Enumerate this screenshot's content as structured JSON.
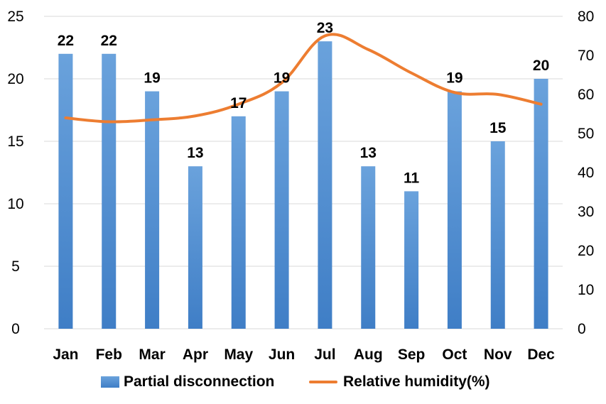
{
  "chart_data": {
    "type": "bar",
    "categories": [
      "Jan",
      "Feb",
      "Mar",
      "Apr",
      "May",
      "Jun",
      "Jul",
      "Aug",
      "Sep",
      "Oct",
      "Nov",
      "Dec"
    ],
    "series": [
      {
        "name": "Partial disconnection",
        "type": "bar",
        "axis": "left",
        "values": [
          22,
          22,
          19,
          13,
          17,
          19,
          23,
          13,
          11,
          19,
          15,
          20
        ],
        "data_labels": [
          "22",
          "22",
          "19",
          "13",
          "17",
          "19",
          "23",
          "13",
          "11",
          "19",
          "15",
          "20"
        ],
        "color": "#5b9bd5"
      },
      {
        "name": "Relative humidity(%)",
        "type": "line",
        "axis": "right",
        "values": [
          54,
          53,
          53.5,
          54.5,
          57.5,
          63,
          75,
          71.5,
          65.5,
          60.5,
          60,
          57.5
        ],
        "color": "#ed7d31"
      }
    ],
    "y_left": {
      "min": 0,
      "max": 25,
      "ticks": [
        "0",
        "5",
        "10",
        "15",
        "20",
        "25"
      ]
    },
    "y_right": {
      "min": 0,
      "max": 80,
      "ticks": [
        "0",
        "10",
        "20",
        "30",
        "40",
        "50",
        "60",
        "70",
        "80"
      ]
    },
    "grid": true,
    "legend": "bottom"
  }
}
